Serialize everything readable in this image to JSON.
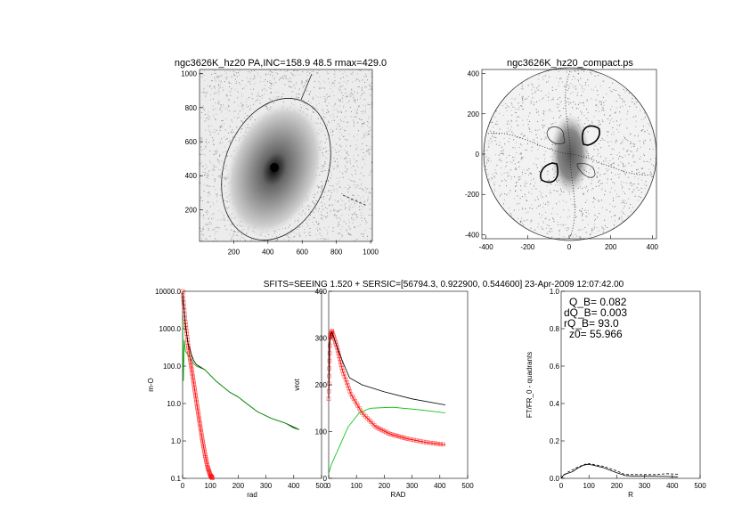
{
  "chart_data": [
    {
      "type": "heatmap",
      "name": "galaxy-image",
      "title": "ngc3626K_hz20 PA,INC=158.9 48.5 rmax=429.0",
      "xlim": [
        0,
        1024
      ],
      "ylim": [
        0,
        1024
      ],
      "xticks": [
        "200",
        "400",
        "600",
        "800",
        "1000"
      ],
      "yticks": [
        "200",
        "400",
        "600",
        "800",
        "1000"
      ],
      "xtick_values": [
        200,
        400,
        600,
        800,
        1000
      ],
      "ytick_values": [
        200,
        400,
        600,
        800,
        1000
      ],
      "center": [
        445,
        430
      ],
      "ellipse": {
        "pa_deg": 158.9,
        "inc_deg": 48.5,
        "rmax": 429.0
      }
    },
    {
      "type": "heatmap",
      "name": "deprojected-image",
      "title": "ngc3626K_hz20_compact.ps",
      "xlim": [
        -420,
        420
      ],
      "ylim": [
        -420,
        420
      ],
      "xticks": [
        "-400",
        "-200",
        "0",
        "200",
        "400"
      ],
      "yticks": [
        "-400",
        "-200",
        "0",
        "200",
        "400"
      ],
      "xtick_values": [
        -400,
        -200,
        0,
        200,
        400
      ],
      "ytick_values": [
        -400,
        -200,
        0,
        200,
        400
      ],
      "rmax": 429.0
    },
    {
      "type": "line",
      "name": "mass-profile",
      "xlabel": "rad",
      "ylabel": "m-O",
      "xlim": [
        0,
        500
      ],
      "ylim": [
        0.1,
        10000
      ],
      "yscale": "log",
      "xticks": [
        "0",
        "100",
        "200",
        "300",
        "400",
        "500"
      ],
      "xtick_values": [
        0,
        100,
        200,
        300,
        400,
        500
      ],
      "yticks": [
        "0.1",
        "1.0",
        "10.0",
        "100.0",
        "1000.0",
        "10000.0"
      ],
      "ytick_values": [
        0.1,
        1,
        10,
        100,
        1000,
        10000
      ],
      "series": [
        {
          "name": "total",
          "color": "#000000",
          "x": [
            0,
            5,
            10,
            20,
            30,
            40,
            50,
            80,
            120,
            170,
            200,
            230,
            270,
            320,
            370,
            420
          ],
          "y": [
            9000,
            3500,
            1200,
            400,
            220,
            140,
            110,
            80,
            40,
            20,
            15,
            10,
            6,
            4,
            3,
            2
          ]
        },
        {
          "name": "disk",
          "color": "#00a000",
          "x": [
            0,
            3,
            6,
            10,
            20,
            30,
            40,
            50,
            80,
            120,
            170,
            200,
            230,
            270,
            320,
            370,
            400,
            420
          ],
          "y": [
            2000,
            40,
            500,
            250,
            200,
            150,
            115,
            100,
            80,
            40,
            20,
            15,
            10,
            6,
            4,
            3,
            2.2,
            2
          ]
        },
        {
          "name": "bulge-sersic",
          "color": "#ff0000",
          "marker": "square",
          "x": [
            0,
            10,
            20,
            30,
            40,
            50,
            60,
            70,
            80,
            90,
            100,
            108
          ],
          "y": [
            10000,
            1500,
            350,
            110,
            35,
            11,
            3.6,
            1.2,
            0.45,
            0.2,
            0.12,
            0.1
          ]
        }
      ]
    },
    {
      "type": "line",
      "name": "rotation-curve",
      "xlabel": "RAD",
      "ylabel": "vrot",
      "xlim": [
        0,
        500
      ],
      "ylim": [
        0,
        400
      ],
      "xticks": [
        "0",
        "100",
        "200",
        "300",
        "400",
        "500"
      ],
      "xtick_values": [
        0,
        100,
        200,
        300,
        400,
        500
      ],
      "yticks": [
        "0",
        "100",
        "200",
        "300",
        "400"
      ],
      "ytick_values": [
        0,
        100,
        200,
        300,
        400
      ],
      "series": [
        {
          "name": "total",
          "color": "#000000",
          "x": [
            0,
            3,
            8,
            12,
            25,
            50,
            75,
            120,
            200,
            300,
            420
          ],
          "y": [
            170,
            290,
            310,
            312,
            290,
            250,
            215,
            200,
            185,
            170,
            157
          ]
        },
        {
          "name": "disk",
          "color": "#00c000",
          "x": [
            0,
            10,
            40,
            70,
            110,
            150,
            230,
            320,
            420
          ],
          "y": [
            10,
            30,
            70,
            110,
            140,
            150,
            152,
            147,
            140
          ]
        },
        {
          "name": "bulge",
          "color": "#ff0000",
          "marker": "square",
          "x": [
            0,
            5,
            12,
            30,
            50,
            80,
            120,
            170,
            220,
            280,
            350,
            420
          ],
          "y": [
            170,
            300,
            315,
            280,
            230,
            180,
            140,
            110,
            95,
            85,
            77,
            72
          ]
        }
      ]
    },
    {
      "type": "line",
      "name": "qt-profile",
      "xlabel": "R",
      "ylabel": "FT/FR_0 - quadrants",
      "xlim": [
        0,
        500
      ],
      "ylim": [
        0,
        1.0
      ],
      "xticks": [
        "0",
        "100",
        "200",
        "300",
        "400",
        "500"
      ],
      "xtick_values": [
        0,
        100,
        200,
        300,
        400,
        500
      ],
      "yticks": [
        "0.0",
        "0.2",
        "0.4",
        "0.6",
        "0.8",
        "1.0"
      ],
      "ytick_values": [
        0,
        0.2,
        0.4,
        0.6,
        0.8,
        1.0
      ],
      "annotations": [
        "Q_B=  0.082",
        "dQ_B=  0.003",
        "rQ_B=   93.0",
        "z0= 55.966"
      ],
      "series": [
        {
          "name": "mean",
          "color": "#000000",
          "x": [
            0,
            10,
            20,
            40,
            60,
            80,
            95,
            110,
            150,
            200,
            230,
            260,
            320,
            380,
            420
          ],
          "y": [
            0,
            0.02,
            0.025,
            0.035,
            0.055,
            0.07,
            0.075,
            0.072,
            0.058,
            0.03,
            0.015,
            0.012,
            0.012,
            0.01,
            0.008
          ]
        },
        {
          "name": "quadrant-max",
          "color": "#000000",
          "dash": true,
          "x": [
            0,
            20,
            60,
            95,
            150,
            200,
            230,
            280,
            340,
            380,
            420
          ],
          "y": [
            0,
            0.03,
            0.06,
            0.08,
            0.065,
            0.04,
            0.02,
            0.02,
            0.02,
            0.025,
            0.022
          ]
        }
      ]
    }
  ],
  "suptitle": "SFITS=SEEING 1.520 + SERSIC=[56794.3, 0.922900, 0.544600]  23-Apr-2009 12:07:42.00"
}
